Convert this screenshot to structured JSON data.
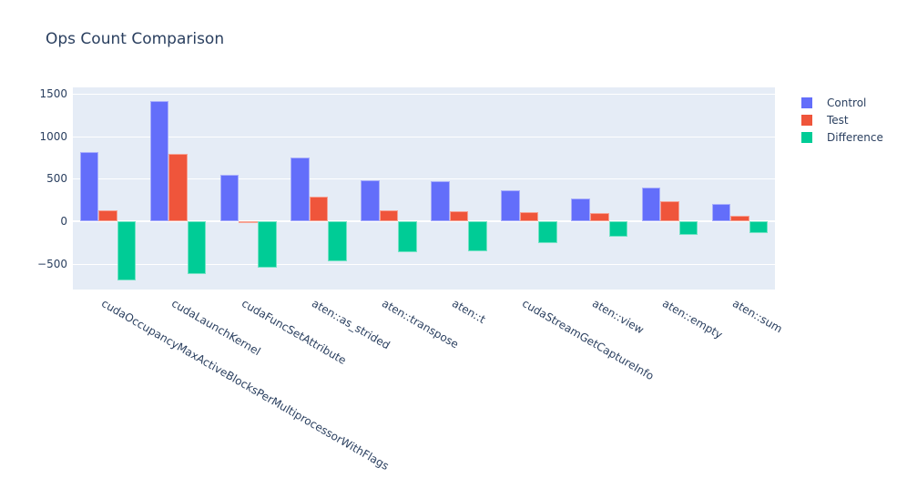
{
  "title": "Ops Count Comparison",
  "colors": {
    "control": "#636EFA",
    "test": "#EF553B",
    "difference": "#00CC96",
    "plot_background": "#E5ECF6",
    "grid": "#FFFFFF",
    "text": "#2A3F5F",
    "paper_background": "#FFFFFF"
  },
  "legend": {
    "position": "top-right",
    "items": [
      "Control",
      "Test",
      "Difference"
    ]
  },
  "chart_data": {
    "type": "bar",
    "title": "Ops Count Comparison",
    "xlabel": "",
    "ylabel": "",
    "grid": true,
    "legend_position": "top-right",
    "x_label_angle_deg": 30,
    "ylim": [
      -800,
      1580
    ],
    "yticks": [
      1500,
      1000,
      500,
      0,
      -500
    ],
    "categories": [
      "cudaOccupancyMaxActiveBlocksPerMultiprocessorWithFlags",
      "cudaLaunchKernel",
      "cudaFuncSetAttribute",
      "aten::as_strided",
      "aten::transpose",
      "aten::t",
      "cudaStreamGetCaptureInfo",
      "aten::view",
      "aten::empty",
      "aten::sum"
    ],
    "series": [
      {
        "name": "Control",
        "color": "#636EFA",
        "values": [
          820,
          1415,
          546,
          758,
          491,
          472,
          365,
          277,
          400,
          207
        ]
      },
      {
        "name": "Test",
        "color": "#EF553B",
        "values": [
          131,
          800,
          2,
          294,
          130,
          124,
          107,
          102,
          240,
          71
        ]
      },
      {
        "name": "Difference",
        "color": "#00CC96",
        "values": [
          -689,
          -615,
          -544,
          -464,
          -361,
          -348,
          -258,
          -175,
          -160,
          -136
        ]
      }
    ]
  }
}
